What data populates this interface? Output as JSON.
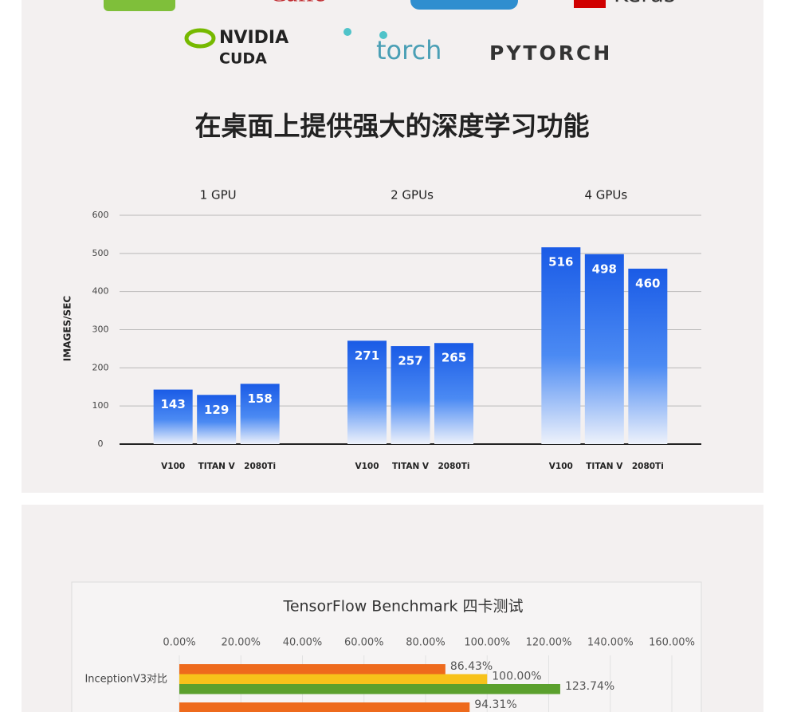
{
  "logos": [
    "Caffe",
    "Keras",
    "NVIDIA",
    "CUDA",
    "torch",
    "PYTORCH"
  ],
  "heading": "在桌面上提供强大的深度学习功能",
  "chart_data": [
    {
      "type": "bar",
      "y_label": "IMAGES/SEC",
      "ylim": [
        0,
        600
      ],
      "yticks": [
        0,
        100,
        200,
        300,
        400,
        500,
        600
      ],
      "grid": true,
      "color": "#1d5ee6",
      "panels": [
        {
          "title": "1 GPU",
          "categories": [
            "V100",
            "TITAN V",
            "2080Ti"
          ],
          "values": [
            143,
            129,
            158
          ]
        },
        {
          "title": "2 GPUs",
          "categories": [
            "V100",
            "TITAN V",
            "2080Ti"
          ],
          "values": [
            271,
            257,
            265
          ]
        },
        {
          "title": "4 GPUs",
          "categories": [
            "V100",
            "TITAN V",
            "2080Ti"
          ],
          "values": [
            516,
            498,
            460
          ]
        }
      ]
    },
    {
      "type": "hbar",
      "title": "TensorFlow Benchmark 四卡测试",
      "categories": [
        "InceptionV3对比",
        null
      ],
      "xlim": [
        0,
        160
      ],
      "xticks": [
        {
          "value": 0,
          "label": "0.00%"
        },
        {
          "value": 20,
          "label": "20.00%"
        },
        {
          "value": 40,
          "label": "40.00%"
        },
        {
          "value": 60,
          "label": "60.00%"
        },
        {
          "value": 80,
          "label": "80.00%"
        },
        {
          "value": 100,
          "label": "100.00%"
        },
        {
          "value": 120,
          "label": "120.00%"
        },
        {
          "value": 140,
          "label": "140.00%"
        },
        {
          "value": 160,
          "label": "160.00%"
        }
      ],
      "grid": true,
      "series": [
        {
          "color": "#ee6a1c",
          "values": [
            86.43,
            94.31
          ],
          "value_labels": [
            "86.43%",
            "94.31%"
          ]
        },
        {
          "color": "#f7c21a",
          "values": [
            100,
            null
          ],
          "value_labels": [
            "100.00%",
            null
          ]
        },
        {
          "color": "#5ba02d",
          "values": [
            123.74,
            null
          ],
          "value_labels": [
            "123.74%",
            null
          ]
        }
      ]
    }
  ]
}
